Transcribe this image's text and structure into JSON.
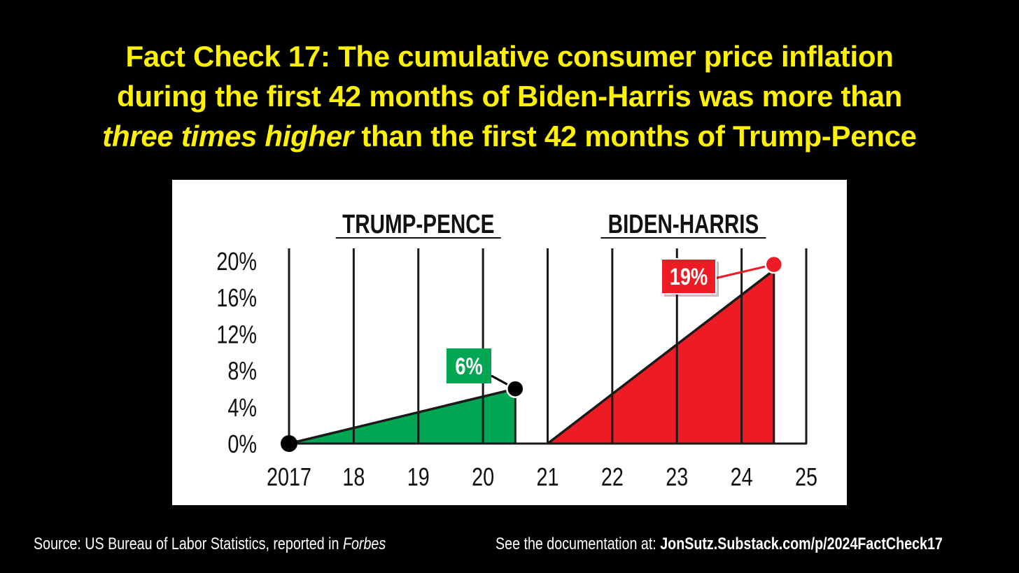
{
  "headline": {
    "line1": "Fact Check 17: The cumulative consumer price inflation",
    "line2": "during the first 42 months of Biden-Harris was more than",
    "line3_emphasis": "three times higher",
    "line3_rest": " than the first 42 months of Trump-Pence"
  },
  "footer": {
    "source_prefix": "Source: US Bureau of Labor Statistics, reported in ",
    "source_publication": "Forbes",
    "doc_prefix": "See the documentation at: ",
    "doc_link": "JonSutz.Substack.com/p/2024FactCheck17"
  },
  "colors": {
    "background": "#000000",
    "headline": "#FFF200",
    "trump": "#00A651",
    "biden": "#ED1C24",
    "ink": "#1a1a1a"
  },
  "chart_data": {
    "type": "area",
    "title": "",
    "xlabel": "",
    "ylabel": "",
    "xlim": [
      2017,
      2025
    ],
    "ylim": [
      0,
      20
    ],
    "grid": "vertical",
    "x_ticks": [
      2017,
      2018,
      2019,
      2020,
      2021,
      2022,
      2023,
      2024,
      2025
    ],
    "x_tick_labels": [
      "2017",
      "18",
      "19",
      "20",
      "21",
      "22",
      "23",
      "24",
      "25"
    ],
    "y_ticks": [
      0,
      4,
      8,
      12,
      16,
      20
    ],
    "y_tick_labels": [
      "0%",
      "4%",
      "8%",
      "12%",
      "16%",
      "20%"
    ],
    "series": [
      {
        "name": "TRUMP-PENCE",
        "color": "#00A651",
        "x": [
          2017,
          2020.5
        ],
        "values": [
          0,
          6
        ],
        "end_label": "6%"
      },
      {
        "name": "BIDEN-HARRIS",
        "color": "#ED1C24",
        "x": [
          2021,
          2024.5
        ],
        "values": [
          0,
          19
        ],
        "end_label": "19%"
      }
    ]
  }
}
